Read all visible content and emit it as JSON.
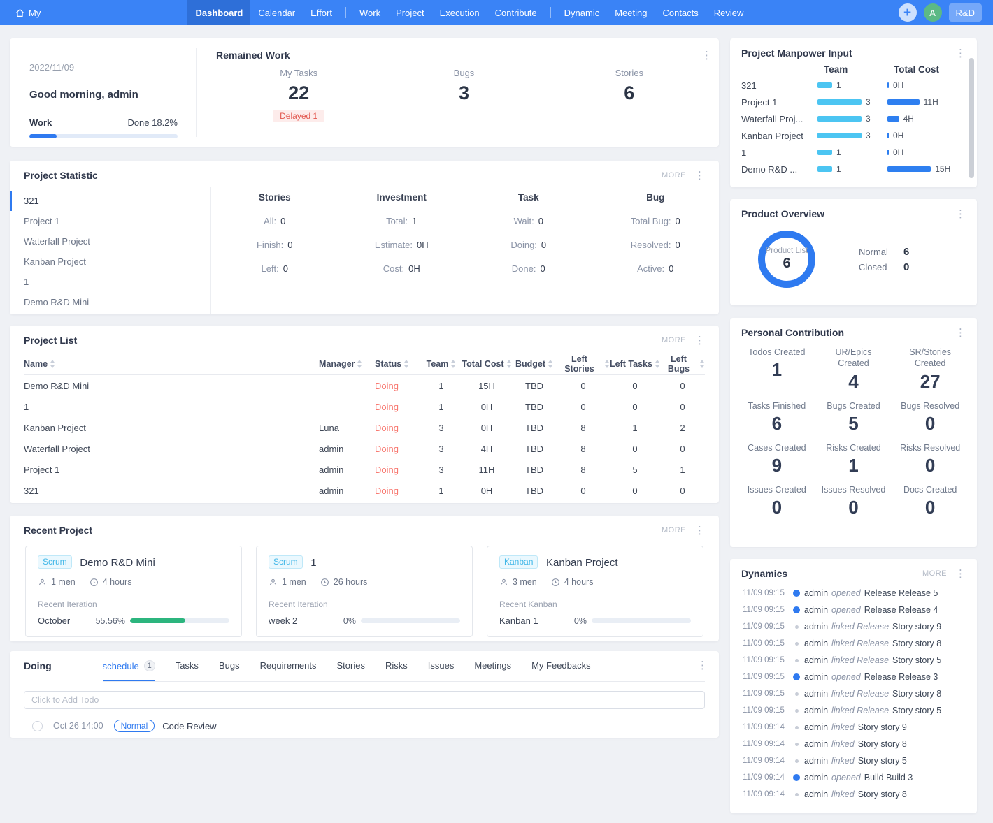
{
  "nav": {
    "brand": "My",
    "groups": [
      {
        "items": [
          {
            "label": "Dashboard",
            "state": "active"
          },
          {
            "label": "Calendar",
            "state": ""
          },
          {
            "label": "Effort",
            "state": ""
          }
        ]
      },
      {
        "items": [
          {
            "label": "Work",
            "state": ""
          },
          {
            "label": "Project",
            "state": ""
          },
          {
            "label": "Execution",
            "state": ""
          },
          {
            "label": "Contribute",
            "state": ""
          }
        ]
      },
      {
        "items": [
          {
            "label": "Dynamic",
            "state": ""
          },
          {
            "label": "Meeting",
            "state": ""
          },
          {
            "label": "Contacts",
            "state": ""
          },
          {
            "label": "Review",
            "state": ""
          }
        ]
      }
    ],
    "plus": "+",
    "avatar": "A",
    "workspace": "R&D"
  },
  "greeting": {
    "date": "2022/11/09",
    "message": "Good morning, admin",
    "work_label": "Work",
    "done_label": "Done 18.2%",
    "done_pct": 18.2
  },
  "remained_work": {
    "title": "Remained Work",
    "stats": [
      {
        "label": "My Tasks",
        "value": "22",
        "badge": "Delayed 1"
      },
      {
        "label": "Bugs",
        "value": "3",
        "badge": ""
      },
      {
        "label": "Stories",
        "value": "6",
        "badge": ""
      }
    ]
  },
  "statistic": {
    "title": "Project Statistic",
    "more": "MORE",
    "menu": [
      {
        "label": "321",
        "state": "active"
      },
      {
        "label": "Project 1",
        "state": ""
      },
      {
        "label": "Waterfall Project",
        "state": ""
      },
      {
        "label": "Kanban Project",
        "state": ""
      },
      {
        "label": "1",
        "state": ""
      },
      {
        "label": "Demo R&D Mini",
        "state": ""
      }
    ],
    "groups": [
      {
        "title": "Stories",
        "rows": [
          {
            "label": "All:",
            "value": "0"
          },
          {
            "label": "Finish:",
            "value": "0"
          },
          {
            "label": "Left:",
            "value": "0"
          }
        ]
      },
      {
        "title": "Investment",
        "rows": [
          {
            "label": "Total:",
            "value": "1"
          },
          {
            "label": "Estimate:",
            "value": "0H"
          },
          {
            "label": "Cost:",
            "value": "0H"
          }
        ]
      },
      {
        "title": "Task",
        "rows": [
          {
            "label": "Wait:",
            "value": "0"
          },
          {
            "label": "Doing:",
            "value": "0"
          },
          {
            "label": "Done:",
            "value": "0"
          }
        ]
      },
      {
        "title": "Bug",
        "rows": [
          {
            "label": "Total Bug:",
            "value": "0"
          },
          {
            "label": "Resolved:",
            "value": "0"
          },
          {
            "label": "Active:",
            "value": "0"
          }
        ]
      }
    ]
  },
  "project_list": {
    "title": "Project List",
    "more": "MORE",
    "columns": [
      "Name",
      "Manager",
      "Status",
      "Team",
      "Total Cost",
      "Budget",
      "Left Stories",
      "Left Tasks",
      "Left Bugs"
    ],
    "rows": [
      {
        "name": "Demo R&D Mini",
        "manager": "",
        "status": "Doing",
        "team": "1",
        "cost": "15H",
        "budget": "TBD",
        "left_stories": "0",
        "left_tasks": "0",
        "left_bugs": "0"
      },
      {
        "name": "1",
        "manager": "",
        "status": "Doing",
        "team": "1",
        "cost": "0H",
        "budget": "TBD",
        "left_stories": "0",
        "left_tasks": "0",
        "left_bugs": "0"
      },
      {
        "name": "Kanban Project",
        "manager": "Luna",
        "status": "Doing",
        "team": "3",
        "cost": "0H",
        "budget": "TBD",
        "left_stories": "8",
        "left_tasks": "1",
        "left_bugs": "2"
      },
      {
        "name": "Waterfall Project",
        "manager": "admin",
        "status": "Doing",
        "team": "3",
        "cost": "4H",
        "budget": "TBD",
        "left_stories": "8",
        "left_tasks": "0",
        "left_bugs": "0"
      },
      {
        "name": "Project 1",
        "manager": "admin",
        "status": "Doing",
        "team": "3",
        "cost": "11H",
        "budget": "TBD",
        "left_stories": "8",
        "left_tasks": "5",
        "left_bugs": "1"
      },
      {
        "name": "321",
        "manager": "admin",
        "status": "Doing",
        "team": "1",
        "cost": "0H",
        "budget": "TBD",
        "left_stories": "0",
        "left_tasks": "0",
        "left_bugs": "0"
      }
    ]
  },
  "recent_projects": {
    "title": "Recent Project",
    "more": "MORE",
    "cards": [
      {
        "badge": "Scrum",
        "name": "Demo R&D Mini",
        "men": "1 men",
        "hours": "4 hours",
        "recent_label": "Recent Iteration",
        "item_name": "October",
        "pct": 55.56,
        "pct_label": "55.56%"
      },
      {
        "badge": "Scrum",
        "name": "1",
        "men": "1 men",
        "hours": "26 hours",
        "recent_label": "Recent Iteration",
        "item_name": "week 2",
        "pct": 0,
        "pct_label": "0%"
      },
      {
        "badge": "Kanban",
        "name": "Kanban Project",
        "men": "3 men",
        "hours": "4 hours",
        "recent_label": "Recent Kanban",
        "item_name": "Kanban 1",
        "pct": 0,
        "pct_label": "0%"
      }
    ]
  },
  "doing": {
    "title": "Doing",
    "active_tab": {
      "label": "schedule",
      "badge": "1"
    },
    "tabs": [
      "Tasks",
      "Bugs",
      "Requirements",
      "Stories",
      "Risks",
      "Issues",
      "Meetings",
      "My Feedbacks"
    ],
    "todo_placeholder": "Click to Add Todo",
    "todo": {
      "time": "Oct 26 14:00",
      "priority": "Normal",
      "title": "Code Review"
    }
  },
  "manpower": {
    "title": "Project Manpower Input",
    "col_team": "Team",
    "col_cost": "Total Cost",
    "rows": [
      {
        "label": "321",
        "team": 1,
        "team_label": "1",
        "cost": 0,
        "cost_label": "0H"
      },
      {
        "label": "Project 1",
        "team": 3,
        "team_label": "3",
        "cost": 11,
        "cost_label": "11H"
      },
      {
        "label": "Waterfall Proj...",
        "team": 3,
        "team_label": "3",
        "cost": 4,
        "cost_label": "4H"
      },
      {
        "label": "Kanban Project",
        "team": 3,
        "team_label": "3",
        "cost": 0,
        "cost_label": "0H"
      },
      {
        "label": "1",
        "team": 1,
        "team_label": "1",
        "cost": 0,
        "cost_label": "0H"
      },
      {
        "label": "Demo R&D ...",
        "team": 1,
        "team_label": "1",
        "cost": 15,
        "cost_label": "15H"
      }
    ]
  },
  "product_overview": {
    "title": "Product Overview",
    "donut_label": "Product List",
    "donut_value": "6",
    "stats": [
      {
        "label": "Normal",
        "value": "6"
      },
      {
        "label": "Closed",
        "value": "0"
      }
    ]
  },
  "contribution": {
    "title": "Personal Contribution",
    "cells": [
      {
        "label": "Todos Created",
        "value": "1"
      },
      {
        "label": "UR/Epics Created",
        "value": "4"
      },
      {
        "label": "SR/Stories Created",
        "value": "27"
      },
      {
        "label": "Tasks Finished",
        "value": "6"
      },
      {
        "label": "Bugs Created",
        "value": "5"
      },
      {
        "label": "Bugs Resolved",
        "value": "0"
      },
      {
        "label": "Cases Created",
        "value": "9"
      },
      {
        "label": "Risks Created",
        "value": "1"
      },
      {
        "label": "Risks Resolved",
        "value": "0"
      },
      {
        "label": "Issues Created",
        "value": "0"
      },
      {
        "label": "Issues Resolved",
        "value": "0"
      },
      {
        "label": "Docs Created",
        "value": "0"
      }
    ]
  },
  "dynamics": {
    "title": "Dynamics",
    "more": "MORE",
    "items": [
      {
        "time": "11/09 09:15",
        "type": "opened",
        "actor": "admin",
        "action": "opened",
        "object": "Release Release 5"
      },
      {
        "time": "11/09 09:15",
        "type": "opened",
        "actor": "admin",
        "action": "opened",
        "object": "Release Release 4"
      },
      {
        "time": "11/09 09:15",
        "type": "linked",
        "actor": "admin",
        "action": "linked Release",
        "object": "Story story 9"
      },
      {
        "time": "11/09 09:15",
        "type": "linked",
        "actor": "admin",
        "action": "linked Release",
        "object": "Story story 8"
      },
      {
        "time": "11/09 09:15",
        "type": "linked",
        "actor": "admin",
        "action": "linked Release",
        "object": "Story story 5"
      },
      {
        "time": "11/09 09:15",
        "type": "opened",
        "actor": "admin",
        "action": "opened",
        "object": "Release Release 3"
      },
      {
        "time": "11/09 09:15",
        "type": "linked",
        "actor": "admin",
        "action": "linked Release",
        "object": "Story story 8"
      },
      {
        "time": "11/09 09:15",
        "type": "linked",
        "actor": "admin",
        "action": "linked Release",
        "object": "Story story 5"
      },
      {
        "time": "11/09 09:14",
        "type": "linked",
        "actor": "admin",
        "action": "linked",
        "object": "Story story 9"
      },
      {
        "time": "11/09 09:14",
        "type": "linked",
        "actor": "admin",
        "action": "linked",
        "object": "Story story 8"
      },
      {
        "time": "11/09 09:14",
        "type": "linked",
        "actor": "admin",
        "action": "linked",
        "object": "Story story 5"
      },
      {
        "time": "11/09 09:14",
        "type": "opened",
        "actor": "admin",
        "action": "opened",
        "object": "Build Build 3"
      },
      {
        "time": "11/09 09:14",
        "type": "linked",
        "actor": "admin",
        "action": "linked",
        "object": "Story story 8"
      }
    ]
  },
  "colors": {
    "nav": "#3a83f6",
    "nav_active": "#2e6fd8",
    "accent": "#2f7af0",
    "team_bar": "#4cc5f2",
    "cost_bar": "#2e7ff0",
    "progress_green": "#2cb57e",
    "status_red": "#f87a72",
    "avatar_green": "#5cb985"
  }
}
